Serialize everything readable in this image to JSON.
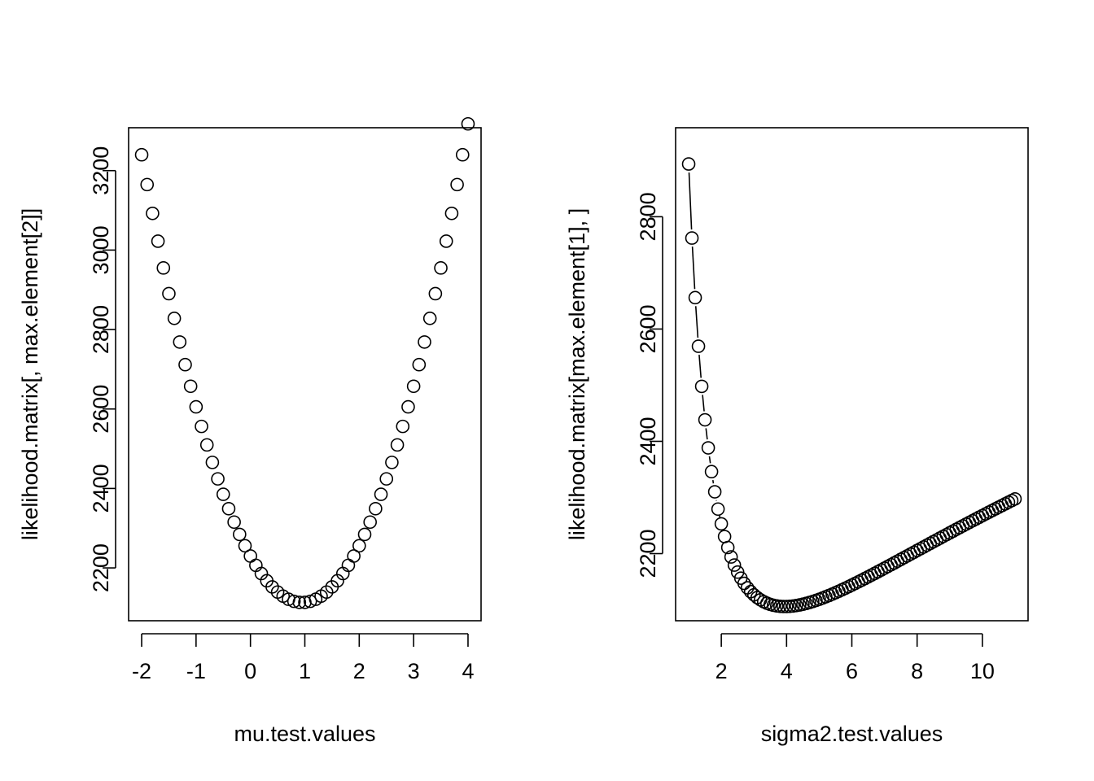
{
  "chart_data": [
    {
      "type": "scatter",
      "xlabel": "mu.test.values",
      "ylabel": "likelihood.matrix[, max.element[2]]",
      "xlim": [
        -2,
        4
      ],
      "ylim": [
        2113,
        3262
      ],
      "xticks": [
        -2,
        -1,
        0,
        1,
        2,
        3,
        4
      ],
      "yticks": [
        2200,
        2400,
        2600,
        2800,
        3000,
        3200
      ],
      "x_range": [
        -2,
        4
      ],
      "x_step": 0.1,
      "curve": {
        "form": "quadratic",
        "vertex_x": 0.95,
        "vertex_y": 2113,
        "a": 129.5
      },
      "connected": false
    },
    {
      "type": "scatter",
      "xlabel": "sigma2.test.values",
      "ylabel": "likelihood.matrix[max.element[1], ]",
      "xlim": [
        1,
        11
      ],
      "ylim": [
        2113,
        2926
      ],
      "xticks": [
        2,
        4,
        6,
        8,
        10
      ],
      "yticks": [
        2200,
        2400,
        2600,
        2800
      ],
      "x_range": [
        1,
        11
      ],
      "x_step": 0.1,
      "curve": {
        "form": "gaussian_nll",
        "n": 1000,
        "ss_over_n": 3.95
      },
      "connected": true
    }
  ]
}
